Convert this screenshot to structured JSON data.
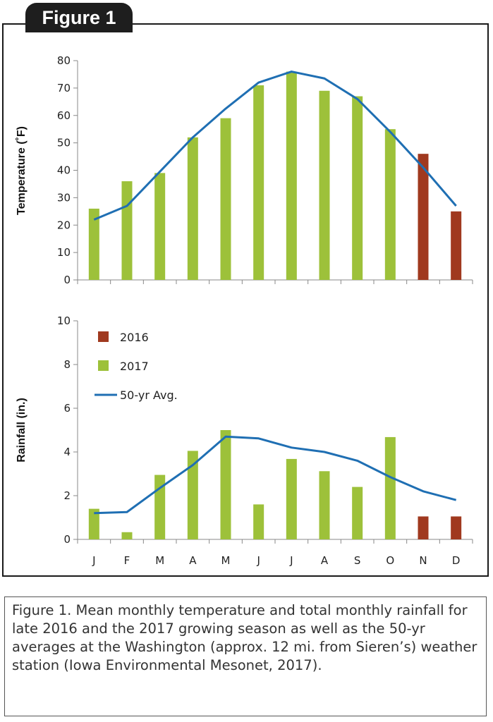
{
  "figure_tab_label": "Figure 1",
  "caption": "Figure 1. Mean monthly temperature and total monthly rainfall for late 2016 and the 2017 growing season as well as the 50-yr averages at the Washington (approx. 12 mi. from Sieren’s) weather station (Iowa Environmental Mesonet, 2017).",
  "colors": {
    "y2016": "#a0391f",
    "y2017": "#9dc13a",
    "avg": "#1f6fb3"
  },
  "chart_data": [
    {
      "type": "bar",
      "categories": [
        "J",
        "F",
        "M",
        "A",
        "M",
        "J",
        "J",
        "A",
        "S",
        "O",
        "N",
        "D"
      ],
      "ylabel": "Temperature (˚F)",
      "ylim": [
        0,
        80
      ],
      "yticks": [
        0,
        10,
        20,
        30,
        40,
        50,
        60,
        70,
        80
      ],
      "series": [
        {
          "name": "2016",
          "values": [
            null,
            null,
            null,
            null,
            null,
            null,
            null,
            null,
            null,
            null,
            46,
            25
          ]
        },
        {
          "name": "2017",
          "values": [
            26,
            36,
            39,
            52,
            59,
            71,
            76,
            69,
            67,
            55,
            null,
            null
          ]
        },
        {
          "name": "50-yr Avg.",
          "type": "line",
          "values": [
            22,
            27,
            39.5,
            52,
            62.5,
            72,
            76,
            73.5,
            66,
            54,
            41,
            27
          ]
        }
      ]
    },
    {
      "type": "bar",
      "categories": [
        "J",
        "F",
        "M",
        "A",
        "M",
        "J",
        "J",
        "A",
        "S",
        "O",
        "N",
        "D"
      ],
      "ylabel": "Rainfall (in.)",
      "ylim": [
        0,
        10
      ],
      "yticks": [
        0,
        2,
        4,
        6,
        8,
        10
      ],
      "legend": {
        "position": "top-left",
        "entries": [
          "2016",
          "2017",
          "50-yr Avg."
        ]
      },
      "series": [
        {
          "name": "2016",
          "values": [
            null,
            null,
            null,
            null,
            null,
            null,
            null,
            null,
            null,
            null,
            1.05,
            1.05
          ]
        },
        {
          "name": "2017",
          "values": [
            1.4,
            0.33,
            2.95,
            4.05,
            5.0,
            1.6,
            3.68,
            3.12,
            2.4,
            4.68,
            null,
            null
          ]
        },
        {
          "name": "50-yr Avg.",
          "type": "line",
          "values": [
            1.2,
            1.25,
            2.35,
            3.4,
            4.7,
            4.62,
            4.2,
            4.0,
            3.6,
            2.85,
            2.2,
            1.8
          ]
        }
      ]
    }
  ]
}
